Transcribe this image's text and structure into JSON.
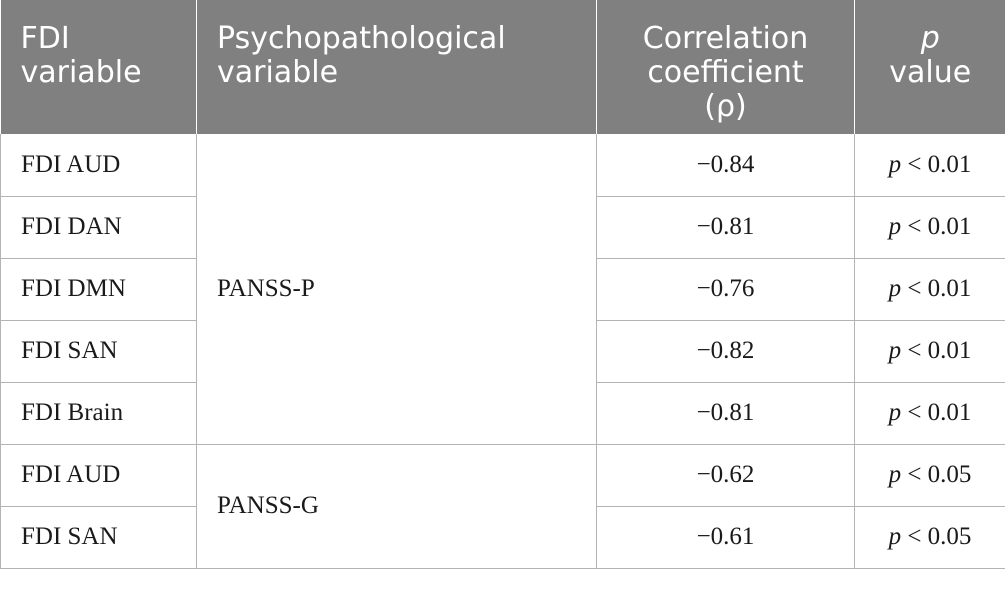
{
  "header": {
    "col1_line1": "FDI",
    "col1_line2": "variable",
    "col2_line1": "Psychopathological",
    "col2_line2": "variable",
    "col3_line1": "Correlation",
    "col3_line2": "coefficient",
    "col3_line3": "(ρ)",
    "col4_line1": "p",
    "col4_line2": "value"
  },
  "groups": [
    {
      "label": "PANSS-P",
      "rows": [
        {
          "fdi": "FDI AUD",
          "rho": "−0.84",
          "p_sym": "p",
          "p_val": " < 0.01"
        },
        {
          "fdi": "FDI DAN",
          "rho": "−0.81",
          "p_sym": "p",
          "p_val": " < 0.01"
        },
        {
          "fdi": "FDI DMN",
          "rho": "−0.76",
          "p_sym": "p",
          "p_val": " < 0.01"
        },
        {
          "fdi": "FDI SAN",
          "rho": "−0.82",
          "p_sym": "p",
          "p_val": " < 0.01"
        },
        {
          "fdi": "FDI Brain",
          "rho": "−0.81",
          "p_sym": "p",
          "p_val": " < 0.01"
        }
      ]
    },
    {
      "label": "PANSS-G",
      "rows": [
        {
          "fdi": "FDI AUD",
          "rho": "−0.62",
          "p_sym": "p",
          "p_val": " < 0.05"
        },
        {
          "fdi": "FDI SAN",
          "rho": "−0.61",
          "p_sym": "p",
          "p_val": " < 0.05"
        }
      ]
    }
  ]
}
